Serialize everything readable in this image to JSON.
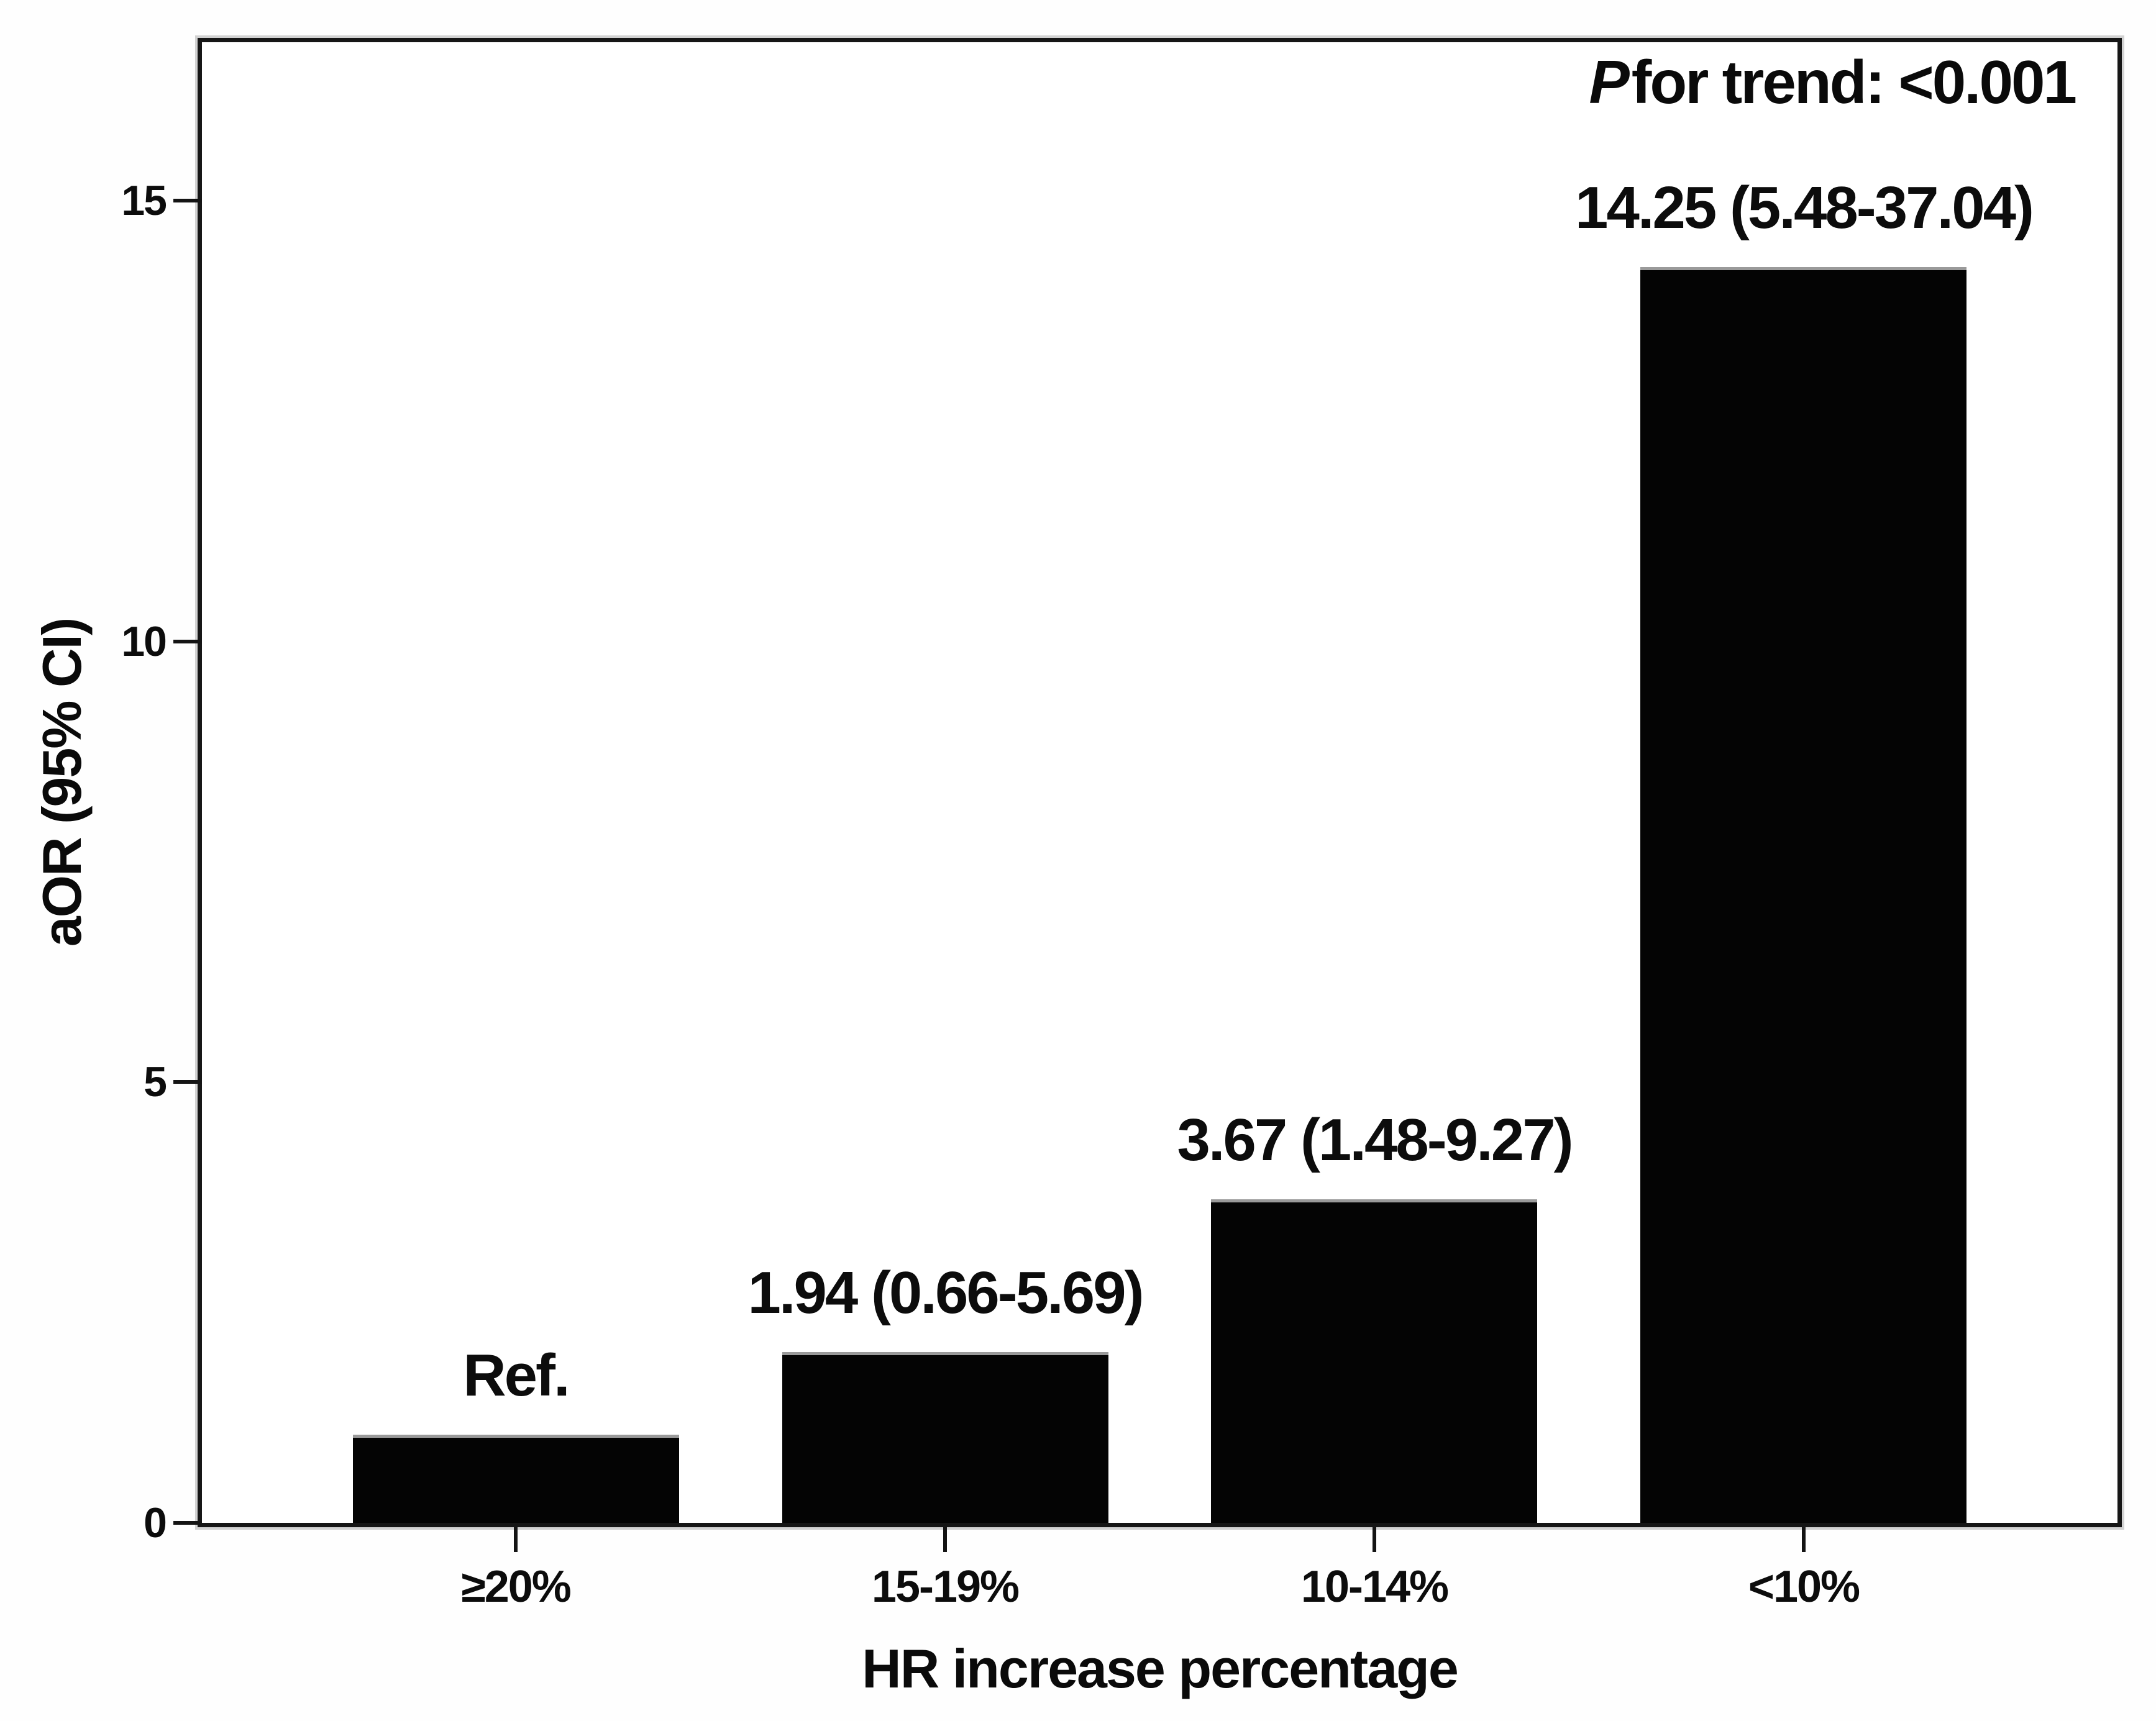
{
  "chart_data": {
    "type": "bar",
    "title": "",
    "categories": [
      "≥20%",
      "15-19%",
      "10-14%",
      "<10%"
    ],
    "values": [
      1.0,
      1.94,
      3.67,
      14.25
    ],
    "reference_category_index": 0,
    "bar_labels": [
      "Ref.",
      "1.94 (0.66-5.69)",
      "3.67 (1.48-9.27)",
      "14.25 (5.48-37.04)"
    ],
    "xlabel": "HR increase percentage",
    "ylabel": "aOR (95% CI)",
    "ylim": [
      0,
      16.8
    ],
    "yticks": [
      "0",
      "5",
      "10",
      "15"
    ],
    "ytick_values": [
      0,
      5,
      10,
      15
    ],
    "grid": false,
    "legend": null,
    "bar_color": "#040404",
    "background_color": "#ffffff",
    "annotation": {
      "italic": "P",
      "rest": "for trend: <0.001",
      "position": "top-right"
    }
  }
}
